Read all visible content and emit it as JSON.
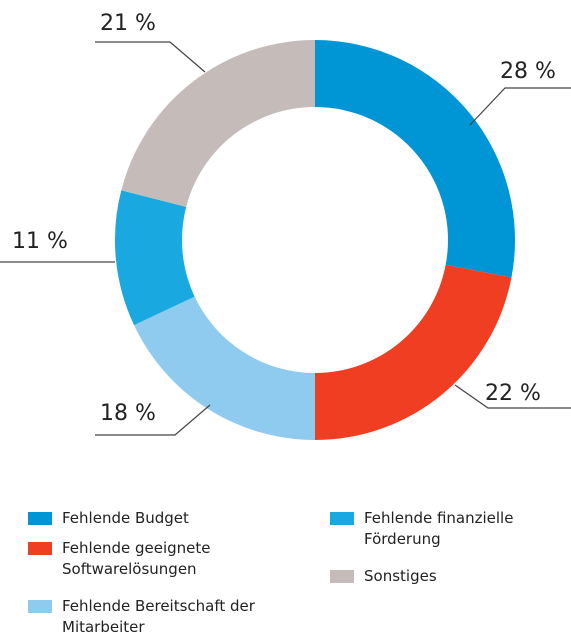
{
  "chart_data": {
    "type": "donut",
    "categories": [
      "Fehlende Budget",
      "Fehlende geeignete Softwarelösungen",
      "Fehlende Bereitschaft der Mitarbeiter",
      "Fehlende finanzielle Förderung",
      "Sonstiges"
    ],
    "values": [
      28,
      22,
      18,
      11,
      21
    ],
    "value_labels": [
      "28 %",
      "22 %",
      "18 %",
      "11 %",
      "21 %"
    ],
    "colors": [
      "#0096d6",
      "#f03e23",
      "#8ecbee",
      "#1aa8e0",
      "#c5bcba"
    ]
  }
}
